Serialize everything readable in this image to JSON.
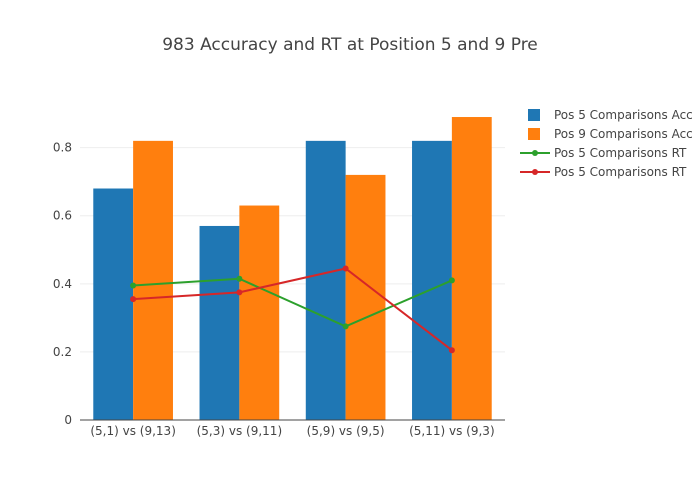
{
  "chart_data": {
    "type": "bar",
    "title": "983 Accuracy and RT at Position 5 and 9 Pre",
    "categories": [
      "(5,1) vs (9,13)",
      "(5,3) vs (9,11)",
      "(5,9) vs (9,5)",
      "(5,11) vs (9,3)"
    ],
    "series": [
      {
        "name": "Pos 5 Comparisons Acc",
        "type": "bar",
        "color": "#1f77b4",
        "values": [
          0.68,
          0.57,
          0.82,
          0.82
        ]
      },
      {
        "name": "Pos 9 Comparisons Acc",
        "type": "bar",
        "color": "#ff7f0e",
        "values": [
          0.82,
          0.63,
          0.72,
          0.89
        ]
      },
      {
        "name": "Pos 5 Comparisons RT",
        "type": "line",
        "color": "#2ca02c",
        "values": [
          0.395,
          0.415,
          0.275,
          0.41
        ]
      },
      {
        "name": "Pos 5 Comparisons RT",
        "type": "line",
        "color": "#d62728",
        "values": [
          0.355,
          0.375,
          0.445,
          0.205
        ]
      }
    ],
    "yticks": [
      0,
      0.2,
      0.4,
      0.6,
      0.8
    ],
    "ytick_labels": [
      "0",
      "0.2",
      "0.4",
      "0.6",
      "0.8"
    ],
    "ylim": [
      0,
      0.94
    ],
    "grid": true,
    "legend_position": "top-right"
  }
}
